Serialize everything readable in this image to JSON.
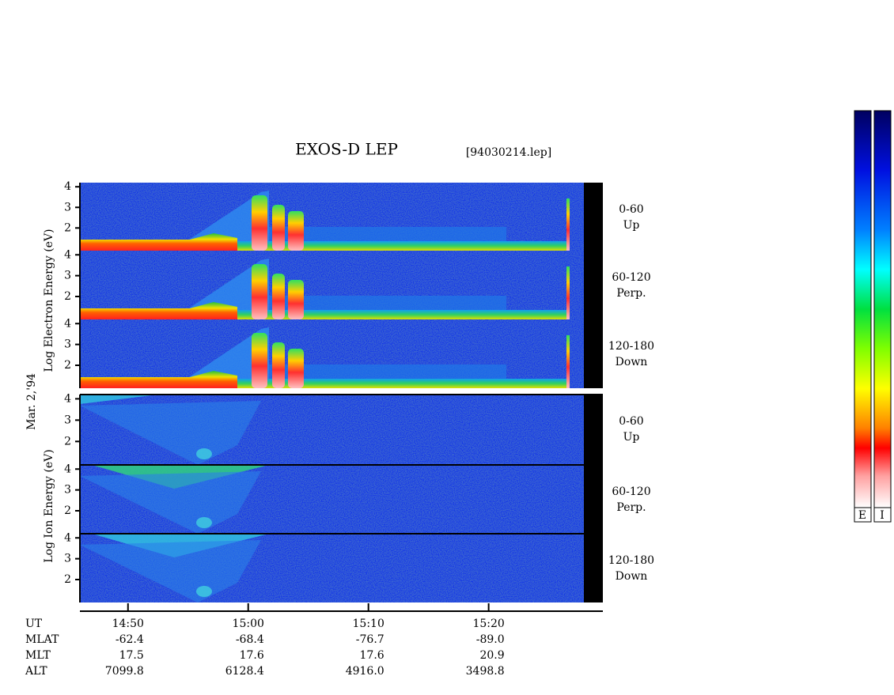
{
  "title": "EXOS-D LEP",
  "file_label": "[94030214.lep]",
  "date_label": "Mar. 2,'94",
  "electron": {
    "axis_label": "Log  Electron  Energy (eV)",
    "panels": [
      {
        "range": "0-60",
        "direction": "Up"
      },
      {
        "range": "60-120",
        "direction": "Perp."
      },
      {
        "range": "120-180",
        "direction": "Down"
      }
    ]
  },
  "ion": {
    "axis_label": "Log  Ion  Energy (eV)",
    "panels": [
      {
        "range": "0-60",
        "direction": "Up"
      },
      {
        "range": "60-120",
        "direction": "Perp."
      },
      {
        "range": "120-180",
        "direction": "Down"
      }
    ]
  },
  "energy_axis": {
    "ylim": [
      0.9,
      4.2
    ],
    "yticks": [
      2,
      3,
      4
    ]
  },
  "time_axis": {
    "xlim": [
      886,
      929.5
    ],
    "xticks": [
      {
        "value": 890,
        "label": "14:50"
      },
      {
        "value": 900,
        "label": "15:00"
      },
      {
        "value": 910,
        "label": "15:10"
      },
      {
        "value": 920,
        "label": "15:20"
      }
    ]
  },
  "ut_label": "UT",
  "ephemeris": [
    {
      "name": "MLAT",
      "values": [
        "-62.4",
        "-68.4",
        "-76.7",
        "-89.0"
      ]
    },
    {
      "name": "MLT",
      "values": [
        "17.5",
        "17.6",
        "17.6",
        "20.9"
      ]
    },
    {
      "name": "ALT",
      "values": [
        "7099.8",
        "6128.4",
        "4916.0",
        "3498.8"
      ]
    }
  ],
  "color_bars": [
    "E",
    "I"
  ]
}
